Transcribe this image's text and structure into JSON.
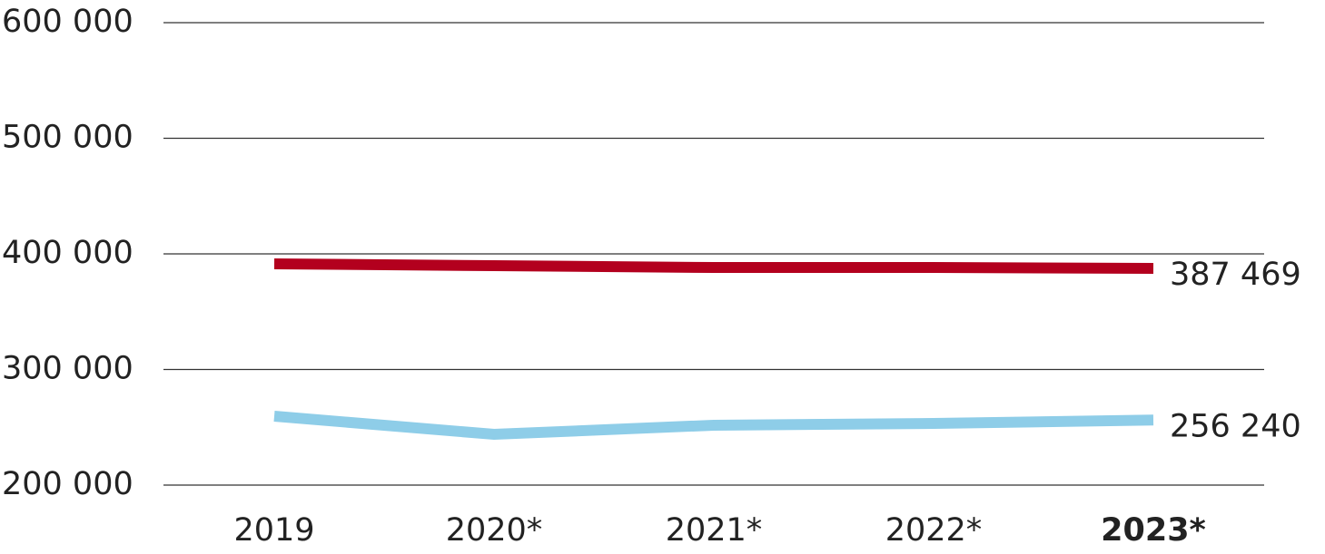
{
  "chart_data": {
    "type": "line",
    "categories": [
      "2019",
      "2020*",
      "2021*",
      "2022*",
      "2023*"
    ],
    "series": [
      {
        "color": "#b3001e",
        "values": [
          391400,
          389800,
          388200,
          388200,
          387469
        ],
        "value_labels": [
          null,
          null,
          null,
          null,
          "387 469"
        ]
      },
      {
        "color": "#8ecde8",
        "values": [
          259600,
          243900,
          251800,
          253300,
          256240
        ],
        "value_labels": [
          null,
          null,
          null,
          null,
          "256 240"
        ]
      }
    ],
    "ylim": [
      200000,
      600000
    ],
    "yticks": [
      {
        "value": 200000,
        "label": "200 000"
      },
      {
        "value": 300000,
        "label": "300 000"
      },
      {
        "value": 400000,
        "label": "400 000"
      },
      {
        "value": 500000,
        "label": "500 000"
      },
      {
        "value": 600000,
        "label": "600 000"
      }
    ],
    "grid": true
  }
}
